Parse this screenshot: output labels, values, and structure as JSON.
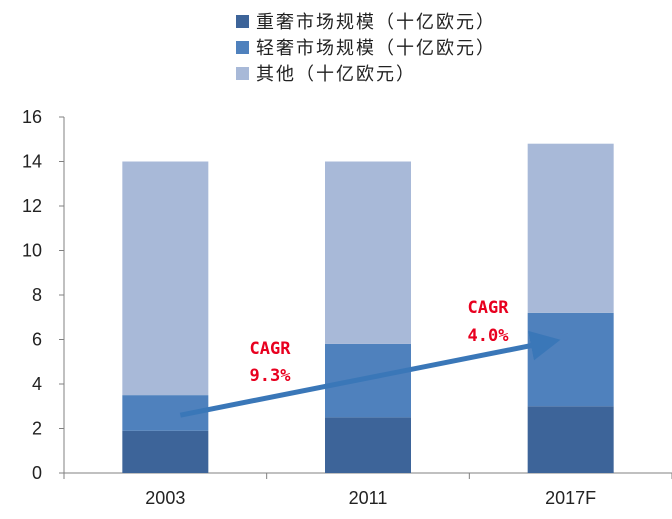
{
  "chart_data": {
    "type": "bar",
    "stacked": true,
    "categories": [
      "2003",
      "2011",
      "2017F"
    ],
    "series": [
      {
        "name": "重奢市场规模（十亿欧元）",
        "color": "#3d6499",
        "values": [
          1.9,
          2.5,
          3.0
        ]
      },
      {
        "name": "轻奢市场规模（十亿欧元）",
        "color": "#4f81bd",
        "values": [
          1.6,
          3.3,
          4.2
        ]
      },
      {
        "name": "其他（十亿欧元）",
        "color": "#a8b9d8",
        "values": [
          10.5,
          8.2,
          7.6
        ]
      }
    ],
    "ylim": [
      0,
      16
    ],
    "yticks": [
      "0",
      "2",
      "4",
      "6",
      "8",
      "10",
      "12",
      "14",
      "16"
    ],
    "legend_position": "top-center",
    "grid": false,
    "annotations": [
      {
        "name": "cagr-2003-2011",
        "title": "CAGR",
        "value": "9.3%",
        "color": "#e8001f"
      },
      {
        "name": "cagr-2011-2017",
        "title": "CAGR",
        "value": "4.0%",
        "color": "#e8001f"
      }
    ],
    "trend_arrow": {
      "color": "#3a77b8",
      "from": {
        "x": "2003",
        "y": 2.6
      },
      "to": {
        "x": "2017F",
        "y": 5.9
      }
    }
  }
}
